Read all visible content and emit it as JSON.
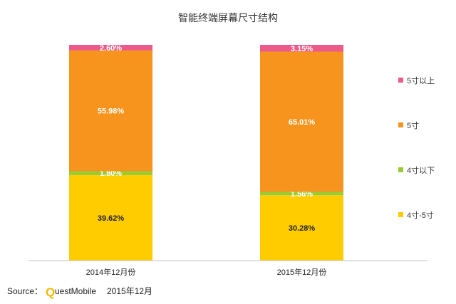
{
  "chart_data": {
    "type": "bar",
    "stacked": true,
    "percent": true,
    "title": "智能终端屏幕尺寸结构",
    "categories": [
      "2014年12月份",
      "2015年12月份"
    ],
    "series": [
      {
        "name": "4寸-5寸",
        "color": "#FFCC00",
        "values": [
          39.62,
          30.28
        ],
        "labels": [
          "39.62%",
          "30.28%"
        ],
        "label_color": "#222222"
      },
      {
        "name": "4寸以下",
        "color": "#99CC33",
        "values": [
          1.8,
          1.56
        ],
        "labels": [
          "1.80%",
          "1.56%"
        ],
        "label_color": "#ffffff"
      },
      {
        "name": "5寸",
        "color": "#F7941D",
        "values": [
          55.98,
          65.01
        ],
        "labels": [
          "55.98%",
          "65.01%"
        ],
        "label_color": "#ffffff"
      },
      {
        "name": "5寸以上",
        "color": "#EC5A89",
        "values": [
          2.6,
          3.15
        ],
        "labels": [
          "2.60%",
          "3.15%"
        ],
        "label_color": "#ffffff"
      }
    ],
    "legend_order": [
      "5寸以上",
      "5寸",
      "4寸以下",
      "4寸-5寸"
    ],
    "legend_position": "right",
    "grid": false
  },
  "source": {
    "prefix": "Source：",
    "logo_letter": "Q",
    "brand_rest": "uestMobile",
    "date": "2015年12月"
  }
}
